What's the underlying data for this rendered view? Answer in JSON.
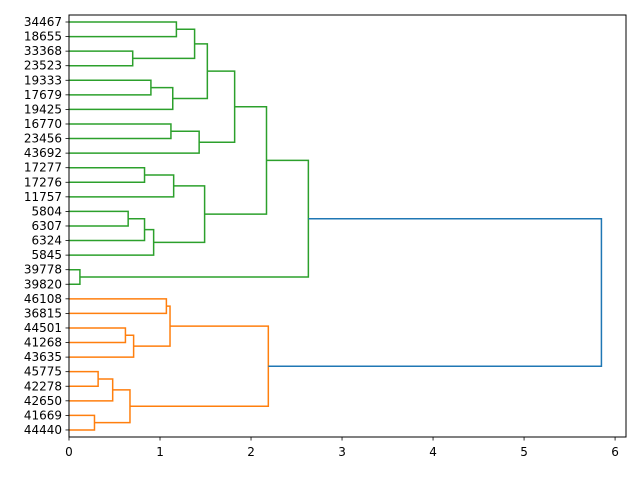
{
  "chart_data": {
    "type": "dendrogram",
    "orientation": "horizontal",
    "leaves": [
      "34467",
      "18655",
      "33368",
      "23523",
      "19333",
      "17679",
      "19425",
      "16770",
      "23456",
      "43692",
      "17277",
      "17276",
      "11757",
      "5804",
      "6307",
      "6324",
      "5845",
      "39778",
      "39820",
      "46108",
      "36815",
      "44501",
      "41268",
      "43635",
      "45775",
      "42278",
      "42650",
      "41669",
      "44440"
    ],
    "merges": [
      {
        "a": "L0",
        "b": "L1",
        "h": 1.18,
        "color": "#2ca02c"
      },
      {
        "a": "L2",
        "b": "L3",
        "h": 0.7,
        "color": "#2ca02c"
      },
      {
        "a": "M0",
        "b": "M1",
        "h": 1.38,
        "color": "#2ca02c"
      },
      {
        "a": "L4",
        "b": "L5",
        "h": 0.9,
        "color": "#2ca02c"
      },
      {
        "a": "M3",
        "b": "L6",
        "h": 1.14,
        "color": "#2ca02c"
      },
      {
        "a": "M2",
        "b": "M4",
        "h": 1.52,
        "color": "#2ca02c"
      },
      {
        "a": "L7",
        "b": "L8",
        "h": 1.12,
        "color": "#2ca02c"
      },
      {
        "a": "M6",
        "b": "L9",
        "h": 1.43,
        "color": "#2ca02c"
      },
      {
        "a": "M5",
        "b": "M7",
        "h": 1.82,
        "color": "#2ca02c"
      },
      {
        "a": "L10",
        "b": "L11",
        "h": 0.83,
        "color": "#2ca02c"
      },
      {
        "a": "M9",
        "b": "L12",
        "h": 1.15,
        "color": "#2ca02c"
      },
      {
        "a": "L13",
        "b": "L14",
        "h": 0.65,
        "color": "#2ca02c"
      },
      {
        "a": "M11",
        "b": "L15",
        "h": 0.83,
        "color": "#2ca02c"
      },
      {
        "a": "M12",
        "b": "L16",
        "h": 0.93,
        "color": "#2ca02c"
      },
      {
        "a": "M10",
        "b": "M13",
        "h": 1.49,
        "color": "#2ca02c"
      },
      {
        "a": "M8",
        "b": "M14",
        "h": 2.17,
        "color": "#2ca02c"
      },
      {
        "a": "L17",
        "b": "L18",
        "h": 0.12,
        "color": "#2ca02c"
      },
      {
        "a": "M15",
        "b": "M16",
        "h": 2.63,
        "color": "#2ca02c"
      },
      {
        "a": "L19",
        "b": "L20",
        "h": 1.07,
        "color": "#ff7f0e"
      },
      {
        "a": "L21",
        "b": "L22",
        "h": 0.62,
        "color": "#ff7f0e"
      },
      {
        "a": "M19",
        "b": "L23",
        "h": 0.71,
        "color": "#ff7f0e"
      },
      {
        "a": "M18",
        "b": "M20",
        "h": 1.11,
        "color": "#ff7f0e"
      },
      {
        "a": "L24",
        "b": "L25",
        "h": 0.32,
        "color": "#ff7f0e"
      },
      {
        "a": "M22",
        "b": "L26",
        "h": 0.48,
        "color": "#ff7f0e"
      },
      {
        "a": "L27",
        "b": "L28",
        "h": 0.28,
        "color": "#ff7f0e"
      },
      {
        "a": "M23",
        "b": "M24",
        "h": 0.67,
        "color": "#ff7f0e"
      },
      {
        "a": "M21",
        "b": "M25",
        "h": 2.19,
        "color": "#ff7f0e"
      },
      {
        "a": "M17",
        "b": "M26",
        "h": 5.85,
        "color": "#1f77b4"
      }
    ],
    "xlim": [
      0,
      6.12
    ],
    "xticks": [
      0,
      1,
      2,
      3,
      4,
      5,
      6
    ],
    "title": "",
    "xlabel": "",
    "ylabel": "",
    "grid": false,
    "colors": {
      "cluster_1": "#2ca02c",
      "cluster_2": "#ff7f0e",
      "root": "#1f77b4",
      "axis": "#000000"
    }
  }
}
